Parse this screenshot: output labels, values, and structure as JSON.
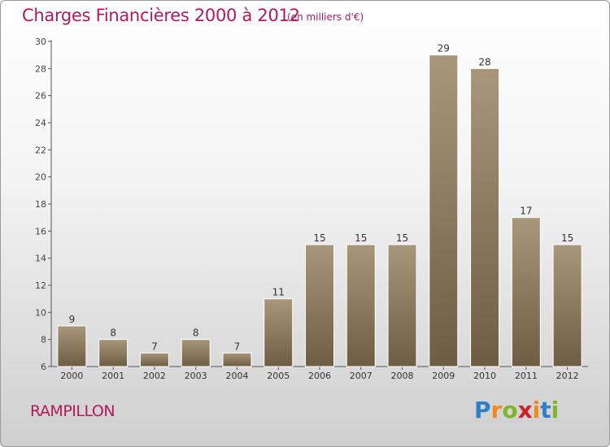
{
  "header": {
    "title": "Charges Financières 2000 à 2012",
    "subtitle": "(en milliers d'€)"
  },
  "footer": {
    "place": "RAMPILLON",
    "logo_letters": [
      "P",
      "r",
      "o",
      "x",
      "i",
      "t",
      "i"
    ],
    "logo_colors": [
      "#2f7fc8",
      "#f08a1c",
      "#7fb52a",
      "#d21f2a",
      "#f08a1c",
      "#2f7fc8",
      "#7fb52a"
    ]
  },
  "colors": {
    "title": "#b5185a",
    "bar_top": "#a8977a",
    "bar_bottom": "#6e5d43",
    "axis": "#555555"
  },
  "chart_data": {
    "type": "bar",
    "categories": [
      "2000",
      "2001",
      "2002",
      "2003",
      "2004",
      "2005",
      "2006",
      "2007",
      "2008",
      "2009",
      "2010",
      "2011",
      "2012"
    ],
    "values": [
      9,
      8,
      7,
      8,
      7,
      11,
      15,
      15,
      15,
      29,
      28,
      17,
      15
    ],
    "title": "Charges Financières 2000 à 2012",
    "subtitle": "(en milliers d'€)",
    "ylim": [
      6,
      30
    ],
    "yticks": [
      6,
      8,
      10,
      12,
      14,
      16,
      18,
      20,
      22,
      24,
      26,
      28,
      30
    ],
    "grid": false,
    "legend": "none"
  }
}
